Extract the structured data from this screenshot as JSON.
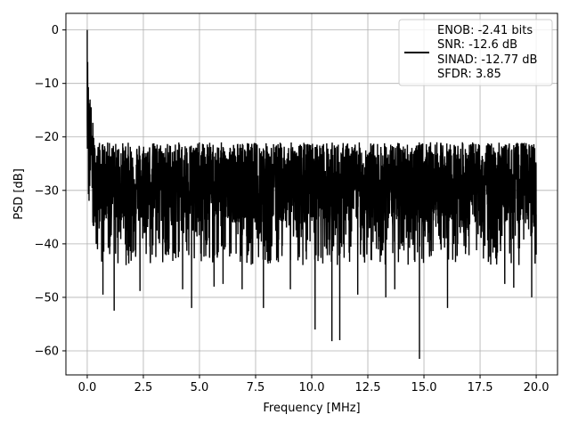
{
  "chart_data": {
    "type": "line",
    "title": "",
    "xlabel": "Frequency [MHz]",
    "ylabel": "PSD [dB]",
    "xlim": [
      -0.95,
      20.95
    ],
    "ylim": [
      -64.5,
      3.1
    ],
    "xticks": [
      0.0,
      2.5,
      5.0,
      7.5,
      10.0,
      12.5,
      15.0,
      17.5,
      20.0
    ],
    "xtick_labels": [
      "0.0",
      "2.5",
      "5.0",
      "7.5",
      "10.0",
      "12.5",
      "15.0",
      "17.5",
      "20.0"
    ],
    "yticks": [
      0,
      -10,
      -20,
      -30,
      -40,
      -50,
      -60
    ],
    "ytick_labels": [
      "0",
      "−10",
      "−20",
      "−30",
      "−40",
      "−50",
      "−60"
    ],
    "grid": true,
    "legend_position": "upper right",
    "legend_entries": [
      "ENOB: -2.41 bits",
      "SNR: -12.6 dB",
      "SINAD: -12.77 dB",
      "SFDR: 3.85"
    ],
    "series": [
      {
        "color": "#000000",
        "peak": {
          "x": 0.0,
          "y": 0.0
        },
        "noise_floor_mean_db": -28,
        "noise_floor_upper_db": -20,
        "points": [
          [
            0.0,
            0.0
          ],
          [
            0.02,
            -6.0
          ],
          [
            0.05,
            -12.0
          ],
          [
            0.08,
            -16.0
          ],
          [
            0.12,
            -14.0
          ],
          [
            0.18,
            -22.0
          ],
          [
            0.25,
            -36.0
          ],
          [
            0.4,
            -40.0
          ],
          [
            0.7,
            -49.5
          ],
          [
            1.2,
            -52.5
          ],
          [
            2.35,
            -48.8
          ],
          [
            4.25,
            -48.5
          ],
          [
            4.65,
            -52.0
          ],
          [
            5.65,
            -48.0
          ],
          [
            6.05,
            -47.5
          ],
          [
            6.9,
            -48.5
          ],
          [
            7.85,
            -52.0
          ],
          [
            9.05,
            -48.5
          ],
          [
            10.15,
            -56.0
          ],
          [
            10.9,
            -58.2
          ],
          [
            11.25,
            -58.0
          ],
          [
            12.05,
            -49.5
          ],
          [
            13.3,
            -50.0
          ],
          [
            13.7,
            -48.5
          ],
          [
            14.8,
            -61.5
          ],
          [
            16.05,
            -52.0
          ],
          [
            18.6,
            -47.5
          ],
          [
            19.0,
            -48.2
          ],
          [
            19.8,
            -50.0
          ],
          [
            20.0,
            -42.0
          ]
        ]
      }
    ]
  }
}
